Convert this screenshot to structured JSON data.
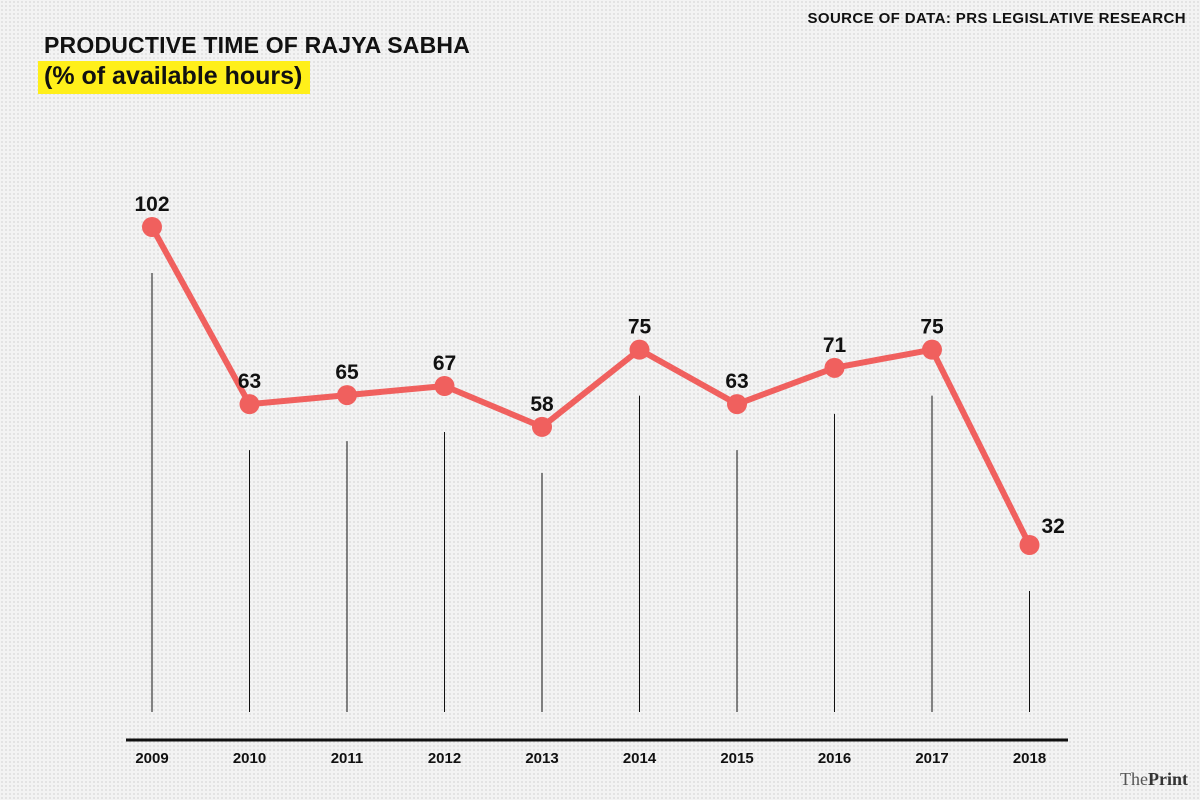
{
  "source": "SOURCE OF DATA: PRS LEGISLATIVE RESEARCH",
  "brand": {
    "pre": "The",
    "name": "Print"
  },
  "colors": {
    "line": "#f0605e",
    "highlight": "#ffef1a",
    "text": "#111111"
  },
  "chart_data": {
    "type": "line",
    "title": "PRODUCTIVE TIME OF RAJYA SABHA",
    "subtitle": "(% of available hours)",
    "xlabel": "",
    "ylabel": "",
    "categories": [
      "2009",
      "2010",
      "2011",
      "2012",
      "2013",
      "2014",
      "2015",
      "2016",
      "2017",
      "2018"
    ],
    "series": [
      {
        "values": [
          102,
          63,
          65,
          67,
          58,
          75,
          63,
          71,
          75,
          32
        ]
      }
    ],
    "ylim": [
      0,
      110
    ],
    "grid": false,
    "legend": "none"
  }
}
